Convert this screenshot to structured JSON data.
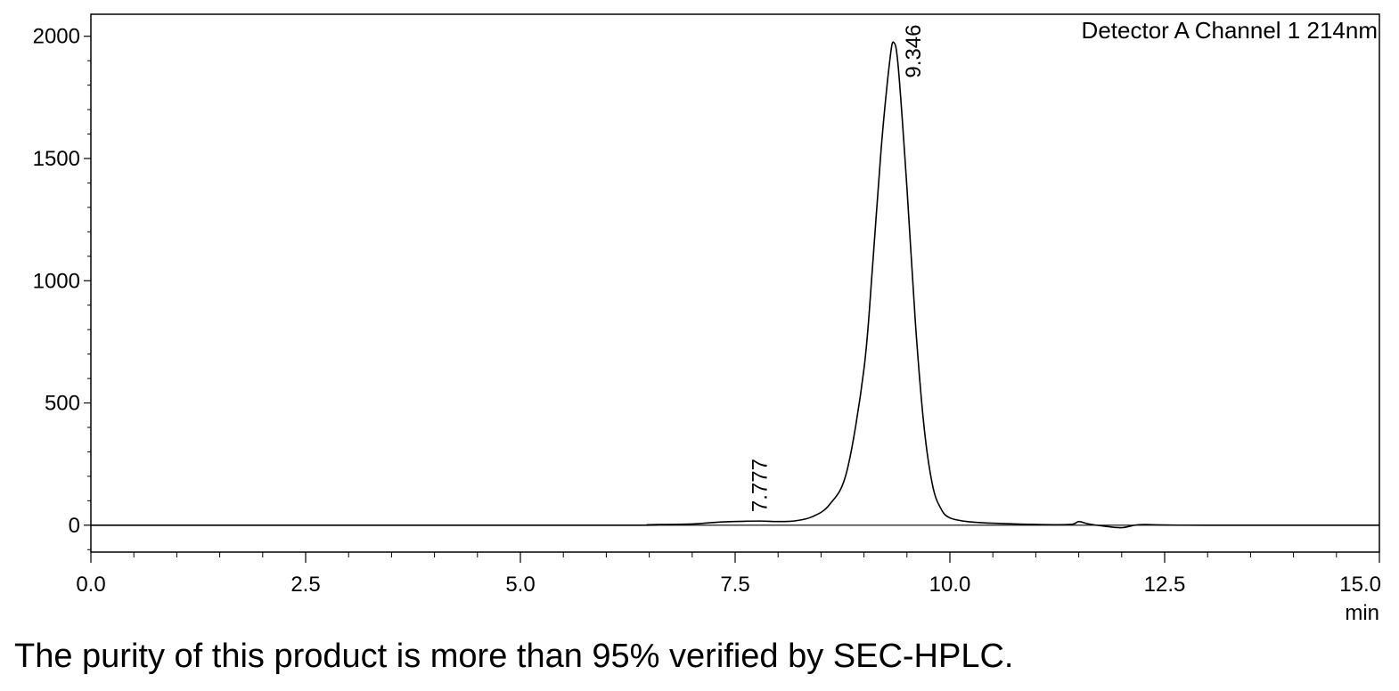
{
  "caption": "The purity of this product is more than 95% verified by SEC-HPLC.",
  "chart_data": {
    "type": "line",
    "legend": "Detector A Channel 1 214nm",
    "legend_position": "top-right",
    "xlabel": "min",
    "ylabel": "",
    "xlim": [
      0,
      15
    ],
    "ylim": [
      -110,
      2090
    ],
    "x_ticks": [
      "0.0",
      "2.5",
      "5.0",
      "7.5",
      "10.0",
      "12.5",
      "15.0"
    ],
    "x_tick_values": [
      0,
      2.5,
      5,
      7.5,
      10,
      12.5,
      15
    ],
    "y_ticks": [
      "0",
      "500",
      "1000",
      "1500",
      "2000"
    ],
    "y_tick_values": [
      0,
      500,
      1000,
      1500,
      2000
    ],
    "grid": false,
    "series": [
      {
        "x": [
          0,
          6.0,
          6.5,
          7.0,
          7.2,
          7.4,
          7.6,
          7.8,
          8.0,
          8.2,
          8.4,
          8.6,
          8.8,
          9.0,
          9.1,
          9.2,
          9.3,
          9.346,
          9.4,
          9.5,
          9.6,
          9.7,
          9.8,
          9.9,
          10.0,
          10.2,
          10.5,
          11.0,
          11.4,
          11.5,
          11.6,
          11.8,
          12.0,
          12.2,
          12.5,
          13.0,
          15.0
        ],
        "y": [
          0,
          0,
          2,
          5,
          10,
          14,
          16,
          17,
          15,
          18,
          35,
          85,
          220,
          640,
          1060,
          1540,
          1900,
          1975,
          1870,
          1380,
          820,
          400,
          160,
          65,
          30,
          15,
          8,
          3,
          3,
          15,
          6,
          -4,
          -10,
          2,
          1,
          0,
          0
        ]
      }
    ],
    "peaks": [
      {
        "x": 7.777,
        "y": 17,
        "label": "7.777"
      },
      {
        "x": 9.346,
        "y": 1975,
        "label": "9.346"
      }
    ]
  }
}
